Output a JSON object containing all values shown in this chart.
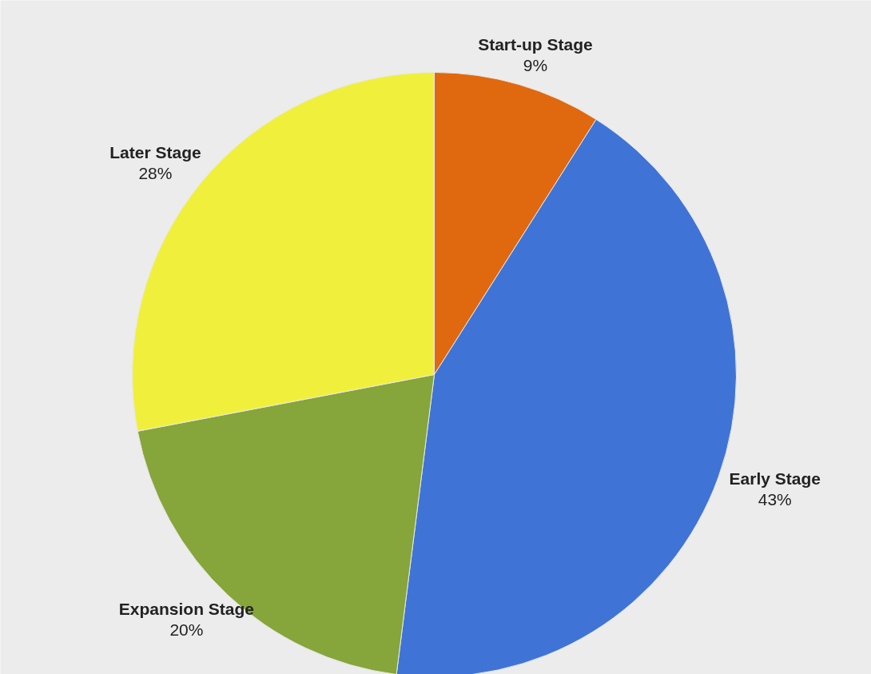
{
  "chart_data": {
    "type": "pie",
    "categories": [
      "Start-up Stage",
      "Early Stage",
      "Expansion Stage",
      "Later Stage"
    ],
    "values": [
      9,
      43,
      20,
      28
    ],
    "value_labels": [
      "9%",
      "43%",
      "20%",
      "28%"
    ],
    "colors": [
      "#e0680f",
      "#3f74d6",
      "#86a53a",
      "#f0f03c"
    ]
  }
}
